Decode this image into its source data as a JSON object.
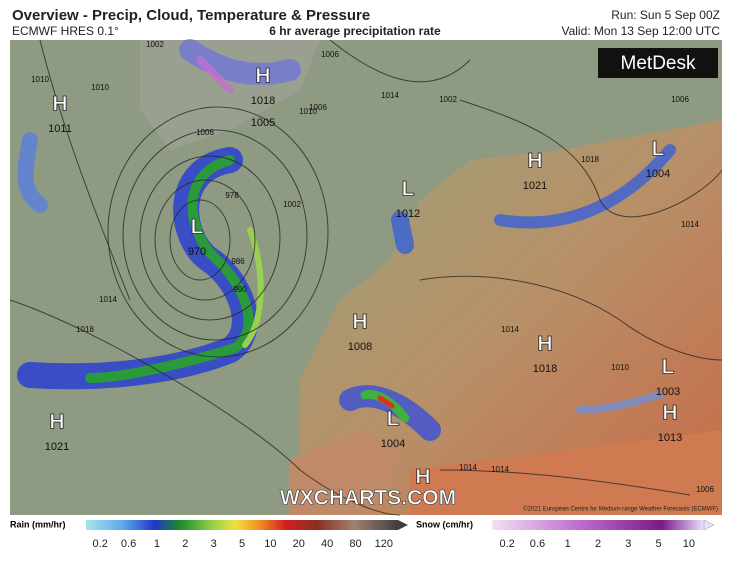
{
  "header": {
    "title": "Overview - Precip, Cloud, Temperature & Pressure",
    "model": "ECMWF HRES 0.1°",
    "subtitle": "6 hr average precipitation rate",
    "run": "Run: Sun 5 Sep 00Z",
    "valid": "Valid: Mon 13 Sep 12:00 UTC"
  },
  "map": {
    "logo": "MetDesk",
    "watermark": "WXCHARTS.COM",
    "copyright": "©2021 European Centre for Medium-range Weather Forecasts (ECMWF)",
    "systems": [
      {
        "label": "H",
        "value": "1011"
      },
      {
        "label": "H",
        "value": "1018"
      },
      {
        "label": "L",
        "value": "970"
      },
      {
        "label": "L",
        "value": "1012"
      },
      {
        "label": "H",
        "value": "1021"
      },
      {
        "label": "L",
        "value": "1004"
      },
      {
        "label": "H",
        "value": "1008"
      },
      {
        "label": "H",
        "value": "1018"
      },
      {
        "label": "L",
        "value": "1003"
      },
      {
        "label": "H",
        "value": "1013"
      },
      {
        "label": "H",
        "value": "1021"
      },
      {
        "label": "L",
        "value": "1004"
      },
      {
        "label": "H"
      }
    ],
    "pressure_labels": [
      "1005"
    ],
    "isobar_labels": [
      "1010",
      "1006",
      "1010",
      "1002",
      "1006",
      "1014",
      "1010",
      "1006",
      "1002",
      "978",
      "986",
      "990",
      "1002",
      "1014",
      "1018",
      "1014",
      "1018",
      "1014",
      "1014",
      "1010",
      "1006",
      "1014",
      "1006"
    ]
  },
  "legend": {
    "rain": {
      "title": "Rain (mm/hr)",
      "ticks": [
        "0.2",
        "0.6",
        "1",
        "2",
        "3",
        "5",
        "10",
        "20",
        "40",
        "80",
        "120"
      ]
    },
    "snow": {
      "title": "Snow (cm/hr)",
      "ticks": [
        "0.2",
        "0.6",
        "1",
        "2",
        "3",
        "5",
        "10"
      ]
    }
  }
}
